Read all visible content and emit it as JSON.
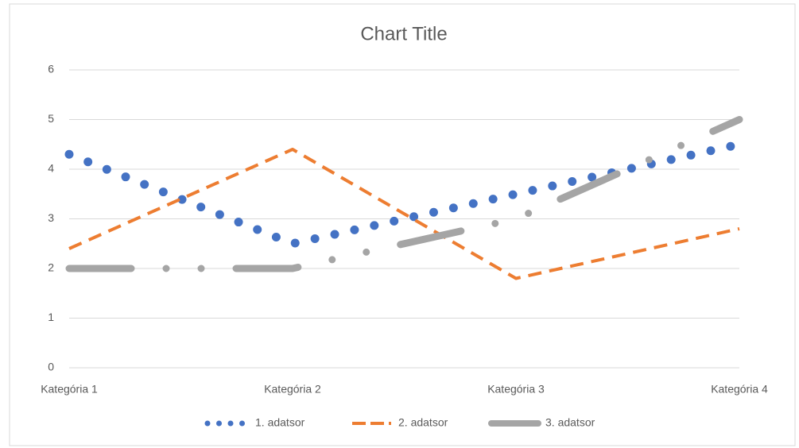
{
  "chart_data": {
    "type": "line",
    "title": "Chart Title",
    "categories": [
      "Kategória 1",
      "Kategória 2",
      "Kategória 3",
      "Kategória 4"
    ],
    "series": [
      {
        "name": "1. adatsor",
        "color": "#4472c4",
        "dash": "round-dot",
        "values": [
          4.3,
          2.5,
          3.5,
          4.5
        ]
      },
      {
        "name": "2. adatsor",
        "color": "#ed7d31",
        "dash": "dash",
        "values": [
          2.4,
          4.4,
          1.8,
          2.8
        ]
      },
      {
        "name": "3. adatsor",
        "color": "#a5a5a5",
        "dash": "long-dash-dot-dot",
        "values": [
          2,
          2,
          3,
          5
        ]
      }
    ],
    "ylim": [
      0,
      6
    ],
    "yticks": [
      0,
      1,
      2,
      3,
      4,
      5,
      6
    ],
    "grid": true,
    "legend": "bottom"
  }
}
